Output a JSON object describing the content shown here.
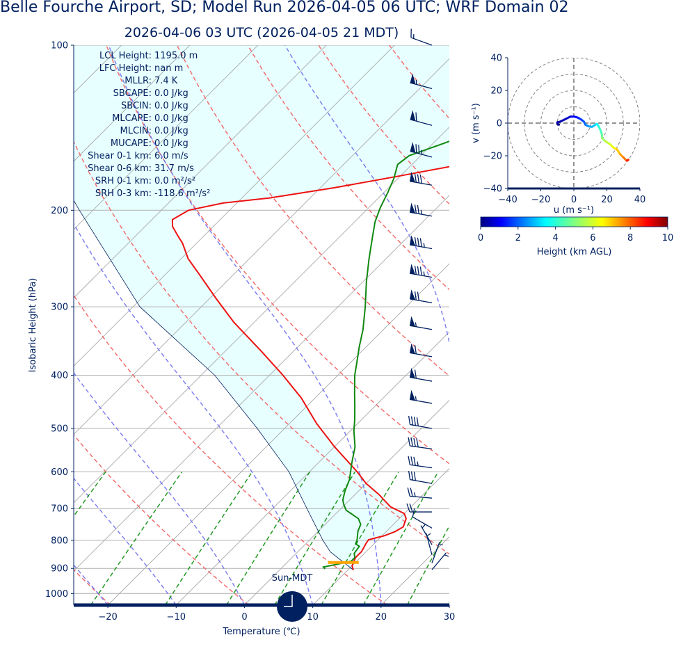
{
  "titles": {
    "main": "Belle Fourche Airport, SD; Model Run 2026-04-05 06 UTC; WRF Domain 02",
    "sub": "2026-04-06 03 UTC  (2026-04-05 21 MDT)"
  },
  "stats": [
    {
      "label": "LCL Height:",
      "value": "1195.0 m"
    },
    {
      "label": "LFC Height:",
      "value": "nan m"
    },
    {
      "label": "MLLR:",
      "value": "7.4 K"
    },
    {
      "label": "SBCAPE:",
      "value": "0.0 J/kg"
    },
    {
      "label": "SBCIN:",
      "value": "0.0 J/kg"
    },
    {
      "label": "MLCAPE:",
      "value": "0.0 J/kg"
    },
    {
      "label": "MLCIN:",
      "value": "0.0 J/kg"
    },
    {
      "label": "MUCAPE:",
      "value": "0.0 J/kg"
    },
    {
      "label": "Shear 0-1 km:",
      "value": "6.0 m/s"
    },
    {
      "label": "Shear 0-6 km:",
      "value": "31.7 m/s"
    },
    {
      "label": "SRH 0-1 km:",
      "value": "0.0 m²/s²"
    },
    {
      "label": "SRH 0-3 km:",
      "value": "-118.6 m²/s²"
    }
  ],
  "clock_label": "Sun-MDT",
  "colors": {
    "text": "#002060",
    "temperature": "#ee1111",
    "dewpoint": "#118811",
    "parcel_fill": "#e8ffff",
    "pbl": "#ffa500"
  },
  "chart_data": [
    {
      "type": "line",
      "subtype": "skew-t log-p",
      "xlabel": "Temperature (℃)",
      "ylabel": "Isobaric Height (hPa)",
      "xlim": [
        -25,
        30
      ],
      "ylim": [
        1050,
        100
      ],
      "yscale": "log",
      "x_ticks": [
        -20,
        -10,
        0,
        10,
        20,
        30
      ],
      "x_tick_labels": [
        "−20",
        "−10",
        "0",
        "10",
        "20",
        "30"
      ],
      "y_ticks": [
        1000,
        900,
        800,
        700,
        600,
        500,
        400,
        300,
        200,
        100
      ],
      "y_tick_labels": [
        "1000",
        "900",
        "800",
        "700",
        "600",
        "500",
        "400",
        "300",
        "200",
        "100"
      ],
      "grid": true,
      "series": [
        {
          "key": "temperature",
          "points": [
            [
              10.8,
              906
            ],
            [
              10,
              890
            ],
            [
              9.3,
              860
            ],
            [
              9.3,
              838
            ],
            [
              8.8,
              812
            ],
            [
              8.6,
              798
            ],
            [
              10.3,
              785
            ],
            [
              11.3,
              771
            ],
            [
              11.8,
              756
            ],
            [
              11,
              730
            ],
            [
              10,
              715
            ],
            [
              7,
              695
            ],
            [
              3.5,
              660
            ],
            [
              0,
              630
            ],
            [
              -3,
              600
            ],
            [
              -10,
              540
            ],
            [
              -16,
              490
            ],
            [
              -22,
              440
            ],
            [
              -28,
              400
            ],
            [
              -35,
              360
            ],
            [
              -43,
              320
            ],
            [
              -49,
              290
            ],
            [
              -55,
              262
            ],
            [
              -59,
              245
            ],
            [
              -62,
              230
            ],
            [
              -64,
              222
            ],
            [
              -66,
              214
            ],
            [
              -67,
              208
            ],
            [
              -66,
              200
            ],
            [
              -62,
              194
            ],
            [
              -56,
              190
            ],
            [
              -48,
              182
            ],
            [
              -40,
              173
            ],
            [
              -30,
              162
            ],
            [
              -20,
              150
            ],
            [
              -13,
              138
            ],
            [
              -7,
              127
            ],
            [
              -2,
              118
            ],
            [
              3,
              108
            ],
            [
              7,
              100
            ]
          ]
        },
        {
          "key": "dewpoint",
          "points": [
            [
              6.5,
              902
            ],
            [
              6,
              895
            ],
            [
              7.5,
              885
            ],
            [
              9.2,
              873
            ],
            [
              9.2,
              860
            ],
            [
              8.5,
              845
            ],
            [
              8.2,
              820
            ],
            [
              7.3,
              812
            ],
            [
              7,
              800
            ],
            [
              5.8,
              770
            ],
            [
              5.2,
              748
            ],
            [
              4,
              730
            ],
            [
              1,
              705
            ],
            [
              -0.2,
              688
            ],
            [
              -1,
              675
            ],
            [
              -2,
              650
            ],
            [
              -3,
              620
            ],
            [
              -5,
              580
            ],
            [
              -7,
              540
            ],
            [
              -9.5,
              505
            ],
            [
              -11,
              482
            ],
            [
              -13,
              455
            ],
            [
              -15,
              430
            ],
            [
              -17.5,
              400
            ],
            [
              -19,
              380
            ],
            [
              -21,
              355
            ],
            [
              -23,
              330
            ],
            [
              -26,
              300
            ],
            [
              -29.5,
              270
            ],
            [
              -32.5,
              245
            ],
            [
              -35,
              225
            ],
            [
              -37,
              210
            ],
            [
              -38.3,
              198
            ],
            [
              -39.4,
              186
            ],
            [
              -40.6,
              175
            ],
            [
              -42.1,
              165
            ],
            [
              -41.7,
              159
            ],
            [
              -37.6,
              149
            ],
            [
              -31,
              138
            ],
            [
              -24,
              126
            ],
            [
              -16,
              115
            ],
            [
              -9,
              106
            ],
            [
              -5,
              100
            ]
          ]
        },
        {
          "key": "parcel",
          "points": [
            [
              10.8,
              906
            ],
            [
              4.8,
              840
            ],
            [
              2,
              800
            ],
            [
              -5,
              700
            ],
            [
              -13,
              600
            ],
            [
              -24,
              500
            ],
            [
              -38,
              400
            ],
            [
              -59,
              300
            ],
            [
              -82,
              200
            ],
            [
              -110,
              120
            ],
            [
              -118,
              100
            ]
          ]
        }
      ],
      "pbl_marker": {
        "p": 878,
        "t_from": 6,
        "t_to": 10.5
      },
      "wind_barbs": [
        {
          "p": 100,
          "speed_kt": 15,
          "dir": 290
        },
        {
          "p": 120,
          "speed_kt": 55,
          "dir": 285
        },
        {
          "p": 140,
          "speed_kt": 60,
          "dir": 285
        },
        {
          "p": 160,
          "speed_kt": 75,
          "dir": 285
        },
        {
          "p": 180,
          "speed_kt": 80,
          "dir": 280
        },
        {
          "p": 205,
          "speed_kt": 75,
          "dir": 280
        },
        {
          "p": 235,
          "speed_kt": 85,
          "dir": 280
        },
        {
          "p": 265,
          "speed_kt": 85,
          "dir": 280
        },
        {
          "p": 295,
          "speed_kt": 70,
          "dir": 280
        },
        {
          "p": 330,
          "speed_kt": 55,
          "dir": 280
        },
        {
          "p": 370,
          "speed_kt": 60,
          "dir": 280
        },
        {
          "p": 410,
          "speed_kt": 60,
          "dir": 280
        },
        {
          "p": 450,
          "speed_kt": 55,
          "dir": 280
        },
        {
          "p": 500,
          "speed_kt": 40,
          "dir": 280
        },
        {
          "p": 545,
          "speed_kt": 40,
          "dir": 278
        },
        {
          "p": 590,
          "speed_kt": 35,
          "dir": 278
        },
        {
          "p": 630,
          "speed_kt": 30,
          "dir": 280
        },
        {
          "p": 670,
          "speed_kt": 25,
          "dir": 275
        },
        {
          "p": 710,
          "speed_kt": 20,
          "dir": 270
        },
        {
          "p": 760,
          "speed_kt": 10,
          "dir": 300
        },
        {
          "p": 815,
          "speed_kt": 5,
          "dir": 330
        },
        {
          "p": 850,
          "speed_kt": 5,
          "dir": 345
        },
        {
          "p": 880,
          "speed_kt": 5,
          "dir": 20
        },
        {
          "p": 905,
          "speed_kt": 5,
          "dir": 40
        }
      ]
    },
    {
      "type": "line",
      "subtype": "hodograph",
      "xlabel": "u (m s⁻¹)",
      "ylabel": "v (m s⁻¹)",
      "xlim": [
        -40,
        40
      ],
      "ylim": [
        -40,
        40
      ],
      "x_ticks": [
        -40,
        -20,
        0,
        20,
        40
      ],
      "x_tick_labels": [
        "−40",
        "−20",
        "0",
        "20",
        "40"
      ],
      "y_ticks": [
        40,
        20,
        0,
        -20,
        -40
      ],
      "y_tick_labels": [
        "40",
        "20",
        "0",
        "−20",
        "−40"
      ],
      "rings": [
        10,
        20,
        30,
        40
      ],
      "points": [
        [
          -9,
          -1,
          0.1
        ],
        [
          -10,
          -0.5,
          0.2
        ],
        [
          -10,
          0.5,
          0.3
        ],
        [
          -8,
          1,
          0.4
        ],
        [
          -6,
          2,
          0.5
        ],
        [
          -4,
          3,
          0.7
        ],
        [
          -2,
          4,
          0.9
        ],
        [
          0,
          4,
          1.1
        ],
        [
          2,
          3.5,
          1.4
        ],
        [
          4,
          2.5,
          1.7
        ],
        [
          6,
          1,
          2.0
        ],
        [
          7,
          -1,
          2.3
        ],
        [
          9,
          -2,
          2.7
        ],
        [
          11,
          -2.3,
          3.0
        ],
        [
          13,
          -1,
          3.3
        ],
        [
          14,
          -0.5,
          3.6
        ],
        [
          15,
          -2,
          4.0
        ],
        [
          16,
          -4,
          4.3
        ],
        [
          17,
          -7,
          4.6
        ],
        [
          17,
          -9,
          5.0
        ],
        [
          19,
          -11,
          5.4
        ],
        [
          22,
          -13,
          5.8
        ],
        [
          24,
          -15,
          6.2
        ],
        [
          26,
          -16,
          6.6
        ],
        [
          28,
          -19,
          7.0
        ],
        [
          30,
          -21,
          7.4
        ],
        [
          32,
          -23,
          7.8
        ],
        [
          33,
          -22.5,
          8.2
        ],
        [
          32,
          -23,
          8.6
        ]
      ]
    },
    {
      "type": "heatmap",
      "subtype": "colorbar",
      "label": "Height (km AGL)",
      "range": [
        0,
        10
      ],
      "ticks": [
        0,
        2,
        4,
        6,
        8,
        10
      ],
      "tick_labels": [
        "0",
        "2",
        "4",
        "6",
        "8",
        "10"
      ],
      "colormap": "jet"
    }
  ]
}
